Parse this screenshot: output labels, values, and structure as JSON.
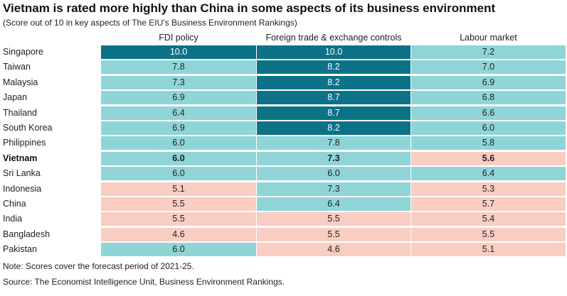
{
  "chart_data": {
    "type": "table",
    "title": "Vietnam is rated more highly than China in some aspects of its business environment",
    "subtitle": "(Score out of 10 in key aspects of The EIU’s Business Environment Rankings)",
    "columns": [
      "FDI policy",
      "Foreign trade & exchange controls",
      "Labour market"
    ],
    "rows": [
      {
        "name": "Singapore",
        "values": [
          "10.0",
          "10.0",
          "7.2"
        ],
        "bold": false
      },
      {
        "name": "Taiwan",
        "values": [
          "7.8",
          "8.2",
          "7.0"
        ],
        "bold": false
      },
      {
        "name": "Malaysia",
        "values": [
          "7.3",
          "8.2",
          "6.9"
        ],
        "bold": false
      },
      {
        "name": "Japan",
        "values": [
          "6.9",
          "8.7",
          "6.8"
        ],
        "bold": false
      },
      {
        "name": "Thailand",
        "values": [
          "6.4",
          "8.7",
          "6.6"
        ],
        "bold": false
      },
      {
        "name": "South Korea",
        "values": [
          "6.9",
          "8.2",
          "6.0"
        ],
        "bold": false
      },
      {
        "name": "Philippines",
        "values": [
          "6.0",
          "7.8",
          "5.8"
        ],
        "bold": false
      },
      {
        "name": "Vietnam",
        "values": [
          "6.0",
          "7.3",
          "5.6"
        ],
        "bold": true
      },
      {
        "name": "Sri Lanka",
        "values": [
          "6.0",
          "6.0",
          "6.4"
        ],
        "bold": false
      },
      {
        "name": "Indonesia",
        "values": [
          "5.1",
          "7.3",
          "5.3"
        ],
        "bold": false
      },
      {
        "name": "China",
        "values": [
          "5.5",
          "6.4",
          "5.7"
        ],
        "bold": false
      },
      {
        "name": "India",
        "values": [
          "5.5",
          "5.5",
          "5.4"
        ],
        "bold": false
      },
      {
        "name": "Bangladesh",
        "values": [
          "4.6",
          "5.5",
          "5.5"
        ],
        "bold": false
      },
      {
        "name": "Pakistan",
        "values": [
          "6.0",
          "4.6",
          "5.1"
        ],
        "bold": false
      }
    ],
    "color_scale": {
      "dark_teal": "#0b7287",
      "light_teal": "#8fd5d8",
      "pink": "#f9cdc2",
      "rules": [
        "8.2 and above: dark_teal",
        "5.8 to 8.1: light_teal",
        "below 5.8: pink"
      ]
    },
    "text_colors": {
      "on_dark": "#ffffff",
      "on_light": "#222222"
    }
  },
  "notes": {
    "note": "Note: Scores cover the forecast period of 2021-25.",
    "source": "Source: The Economist Intelligence Unit, Business Environment Rankings."
  }
}
